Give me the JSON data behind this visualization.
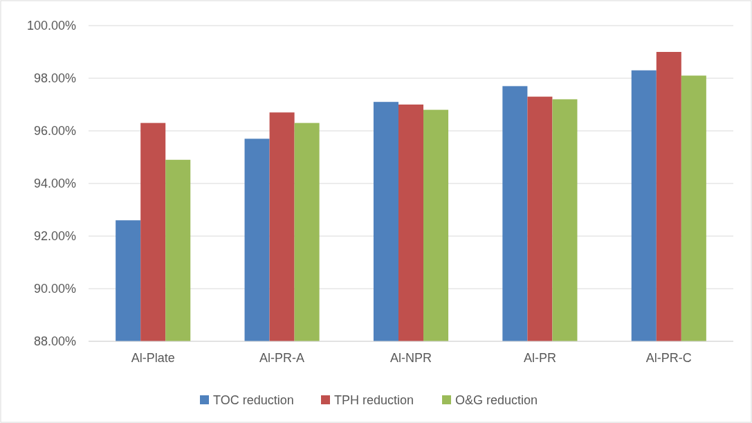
{
  "chart_data": {
    "type": "bar",
    "categories": [
      "Al-Plate",
      "Al-PR-A",
      "Al-NPR",
      "Al-PR",
      "Al-PR-C"
    ],
    "series": [
      {
        "name": "TOC reduction",
        "color": "#4f81bd",
        "values": [
          92.6,
          95.7,
          97.1,
          97.7,
          98.3
        ]
      },
      {
        "name": "TPH reduction",
        "color": "#c0504d",
        "values": [
          96.3,
          96.7,
          97.0,
          97.3,
          99.0
        ]
      },
      {
        "name": "O&G reduction",
        "color": "#9bbb59",
        "values": [
          94.9,
          96.3,
          96.8,
          97.2,
          98.1
        ]
      }
    ],
    "ylim": [
      88,
      100
    ],
    "yticks": [
      {
        "value": 88,
        "label": "88.00%"
      },
      {
        "value": 90,
        "label": "90.00%"
      },
      {
        "value": 92,
        "label": "92.00%"
      },
      {
        "value": 94,
        "label": "94.00%"
      },
      {
        "value": 96,
        "label": "96.00%"
      },
      {
        "value": 98,
        "label": "98.00%"
      },
      {
        "value": 100,
        "label": "100.00%"
      }
    ],
    "grid": "y",
    "legend": "bottom"
  }
}
